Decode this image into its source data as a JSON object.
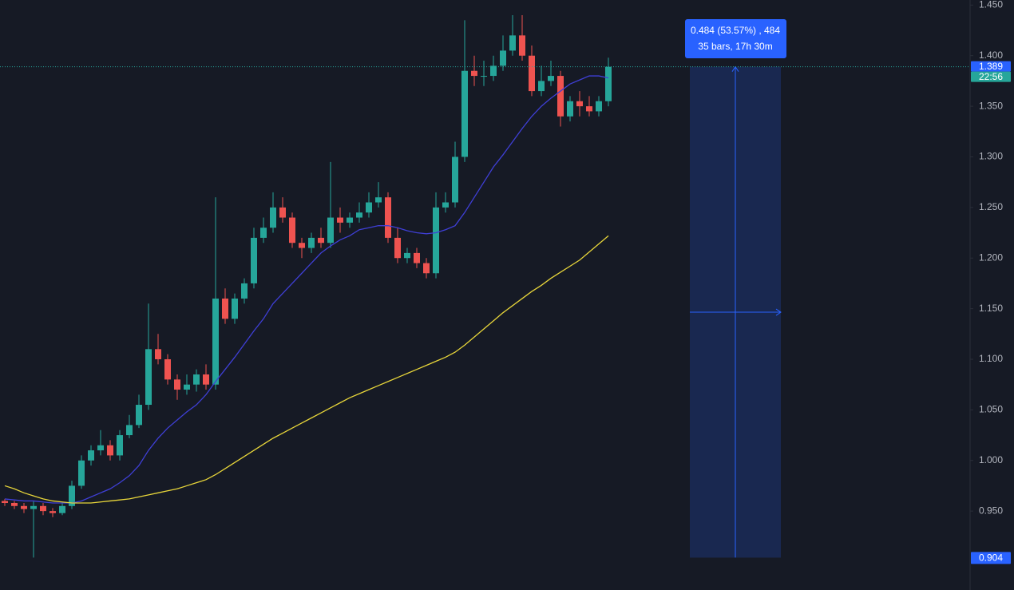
{
  "chart_data": {
    "type": "candlestick",
    "up_color": "#26a69a",
    "down_color": "#ef5350",
    "open": [
      0.96,
      0.958,
      0.955,
      0.952,
      0.955,
      0.95,
      0.948,
      0.955,
      0.975,
      1.0,
      1.01,
      1.015,
      1.005,
      1.025,
      1.035,
      1.055,
      1.11,
      1.1,
      1.08,
      1.07,
      1.075,
      1.085,
      1.075,
      1.16,
      1.14,
      1.16,
      1.175,
      1.22,
      1.23,
      1.25,
      1.24,
      1.215,
      1.21,
      1.22,
      1.215,
      1.24,
      1.235,
      1.24,
      1.245,
      1.255,
      1.26,
      1.22,
      1.2,
      1.205,
      1.195,
      1.185,
      1.25,
      1.255,
      1.3,
      1.385,
      1.38,
      1.38,
      1.39,
      1.405,
      1.42,
      1.4,
      1.365,
      1.375,
      1.38,
      1.34,
      1.355,
      1.35,
      1.345,
      1.355
    ],
    "high": [
      0.962,
      0.96,
      0.958,
      0.96,
      0.958,
      0.953,
      0.958,
      0.98,
      1.005,
      1.015,
      1.03,
      1.02,
      1.03,
      1.045,
      1.065,
      1.155,
      1.125,
      1.105,
      1.085,
      1.085,
      1.09,
      1.095,
      1.26,
      1.17,
      1.165,
      1.18,
      1.23,
      1.24,
      1.265,
      1.26,
      1.245,
      1.22,
      1.225,
      1.23,
      1.295,
      1.25,
      1.245,
      1.255,
      1.265,
      1.275,
      1.265,
      1.23,
      1.21,
      1.21,
      1.2,
      1.265,
      1.265,
      1.315,
      1.435,
      1.4,
      1.395,
      1.4,
      1.42,
      1.44,
      1.44,
      1.41,
      1.39,
      1.395,
      1.385,
      1.36,
      1.365,
      1.36,
      1.36,
      1.398
    ],
    "low": [
      0.955,
      0.952,
      0.948,
      0.904,
      0.946,
      0.944,
      0.946,
      0.952,
      0.972,
      0.995,
      1.005,
      1.0,
      1.0,
      1.022,
      1.032,
      1.05,
      1.095,
      1.075,
      1.06,
      1.065,
      1.068,
      1.07,
      1.07,
      1.135,
      1.135,
      1.155,
      1.17,
      1.215,
      1.225,
      1.235,
      1.21,
      1.2,
      1.205,
      1.21,
      1.21,
      1.225,
      1.23,
      1.235,
      1.24,
      1.25,
      1.215,
      1.195,
      1.195,
      1.19,
      1.18,
      1.18,
      1.245,
      1.25,
      1.295,
      1.37,
      1.37,
      1.375,
      1.385,
      1.4,
      1.395,
      1.36,
      1.36,
      1.37,
      1.33,
      1.335,
      1.34,
      1.34,
      1.34,
      1.35
    ],
    "close": [
      0.958,
      0.955,
      0.952,
      0.955,
      0.95,
      0.948,
      0.955,
      0.975,
      1.0,
      1.01,
      1.015,
      1.005,
      1.025,
      1.035,
      1.055,
      1.11,
      1.1,
      1.08,
      1.07,
      1.075,
      1.085,
      1.075,
      1.16,
      1.14,
      1.16,
      1.175,
      1.22,
      1.23,
      1.25,
      1.24,
      1.215,
      1.21,
      1.22,
      1.215,
      1.24,
      1.235,
      1.24,
      1.245,
      1.255,
      1.26,
      1.22,
      1.2,
      1.205,
      1.195,
      1.185,
      1.25,
      1.255,
      1.3,
      1.385,
      1.38,
      1.38,
      1.39,
      1.405,
      1.42,
      1.4,
      1.365,
      1.375,
      1.38,
      1.34,
      1.355,
      1.35,
      1.345,
      1.355,
      1.389
    ],
    "series": [
      {
        "color": "#3f3fd6",
        "values": [
          0.962,
          0.961,
          0.96,
          0.96,
          0.959,
          0.958,
          0.958,
          0.958,
          0.96,
          0.964,
          0.968,
          0.972,
          0.978,
          0.985,
          0.995,
          1.01,
          1.022,
          1.032,
          1.04,
          1.048,
          1.055,
          1.065,
          1.078,
          1.09,
          1.102,
          1.115,
          1.128,
          1.14,
          1.155,
          1.165,
          1.175,
          1.185,
          1.195,
          1.205,
          1.212,
          1.218,
          1.222,
          1.228,
          1.23,
          1.232,
          1.232,
          1.23,
          1.227,
          1.225,
          1.224,
          1.225,
          1.228,
          1.232,
          1.245,
          1.26,
          1.275,
          1.29,
          1.302,
          1.315,
          1.328,
          1.34,
          1.35,
          1.358,
          1.365,
          1.372,
          1.376,
          1.38,
          1.38,
          1.378
        ]
      },
      {
        "color": "#e8d63a",
        "values": [
          0.975,
          0.972,
          0.968,
          0.965,
          0.962,
          0.96,
          0.959,
          0.958,
          0.958,
          0.958,
          0.959,
          0.96,
          0.961,
          0.962,
          0.964,
          0.966,
          0.968,
          0.97,
          0.972,
          0.975,
          0.978,
          0.981,
          0.986,
          0.992,
          0.998,
          1.004,
          1.01,
          1.016,
          1.022,
          1.027,
          1.032,
          1.037,
          1.042,
          1.047,
          1.052,
          1.057,
          1.062,
          1.066,
          1.07,
          1.074,
          1.078,
          1.082,
          1.086,
          1.09,
          1.094,
          1.098,
          1.102,
          1.107,
          1.114,
          1.122,
          1.13,
          1.138,
          1.146,
          1.153,
          1.16,
          1.167,
          1.173,
          1.18,
          1.186,
          1.192,
          1.198,
          1.206,
          1.214,
          1.222
        ]
      }
    ],
    "ylim": [
      0.872,
      1.455
    ],
    "yticks": [
      {
        "value": 0.95,
        "label": "0.950"
      },
      {
        "value": 1.0,
        "label": "1.000"
      },
      {
        "value": 1.05,
        "label": "1.050"
      },
      {
        "value": 1.1,
        "label": "1.100"
      },
      {
        "value": 1.15,
        "label": "1.150"
      },
      {
        "value": 1.2,
        "label": "1.200"
      },
      {
        "value": 1.25,
        "label": "1.250"
      },
      {
        "value": 1.3,
        "label": "1.300"
      },
      {
        "value": 1.35,
        "label": "1.350"
      },
      {
        "value": 1.4,
        "label": "1.400"
      },
      {
        "value": 1.45,
        "label": "1.450"
      }
    ],
    "last_price": 1.389,
    "countdown": "22:56",
    "measure": {
      "from": 0.904,
      "to": 1.389,
      "label": "0.484 (53.57%) , 484",
      "detail": "35 bars, 17h 30m"
    }
  }
}
